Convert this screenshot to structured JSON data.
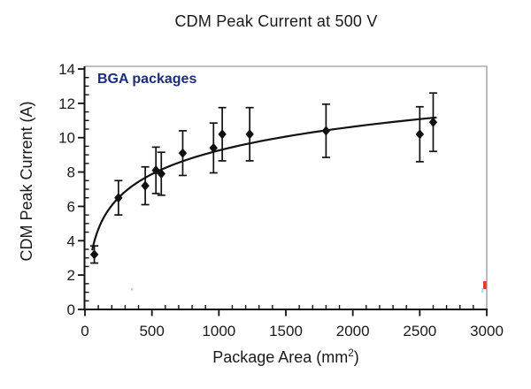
{
  "colors": {
    "text": "#1a1a1a",
    "annotation": "#1b2d7d",
    "line": "#111111",
    "marker": "#111111",
    "frame_gray": "#ababab",
    "artifact_red": "#e23b2e",
    "artifact_cyan": "#9ed8d8"
  },
  "chart_data": {
    "type": "scatter",
    "title": "CDM Peak Current at 500 V",
    "annotation": "BGA packages",
    "ylabel": "CDM Peak Current (A)",
    "xlabel": "Package Area (mm²)",
    "xlabel_parts": {
      "prefix": "Package Area (mm",
      "sup": "2",
      "suffix": ")"
    },
    "xlim": [
      0,
      3000
    ],
    "ylim": [
      0,
      14
    ],
    "x_ticks": [
      0,
      500,
      1000,
      1500,
      2000,
      2500,
      3000
    ],
    "x_minor_step": 100,
    "y_ticks": [
      0,
      2,
      4,
      6,
      8,
      10,
      12,
      14
    ],
    "y_minor_step": 0.5,
    "grid": false,
    "legend": "none",
    "series": [
      {
        "name": "BGA packages",
        "marker": "diamond",
        "error_bars": true,
        "points": [
          {
            "x": 70,
            "y": 3.2,
            "err": 0.5
          },
          {
            "x": 250,
            "y": 6.5,
            "err": 1.0
          },
          {
            "x": 450,
            "y": 7.2,
            "err": 1.1
          },
          {
            "x": 530,
            "y": 8.1,
            "err": 1.35
          },
          {
            "x": 570,
            "y": 7.9,
            "err": 1.25
          },
          {
            "x": 730,
            "y": 9.1,
            "err": 1.3
          },
          {
            "x": 960,
            "y": 9.4,
            "err": 1.45
          },
          {
            "x": 1025,
            "y": 10.2,
            "err": 1.55
          },
          {
            "x": 1230,
            "y": 10.2,
            "err": 1.55
          },
          {
            "x": 1800,
            "y": 10.4,
            "err": 1.55
          },
          {
            "x": 2500,
            "y": 10.2,
            "err": 1.6
          },
          {
            "x": 2600,
            "y": 10.9,
            "err": 1.7
          }
        ]
      }
    ],
    "trend_curve": {
      "type": "logarithmic",
      "a": 1.99,
      "b": -4.49,
      "x_start": 55,
      "x_end": 2620,
      "sample_points": [
        [
          55,
          3.5
        ],
        [
          120,
          5.0
        ],
        [
          250,
          6.5
        ],
        [
          500,
          7.9
        ],
        [
          1000,
          9.3
        ],
        [
          1500,
          10.1
        ],
        [
          2000,
          10.6
        ],
        [
          2620,
          11.2
        ]
      ]
    }
  }
}
